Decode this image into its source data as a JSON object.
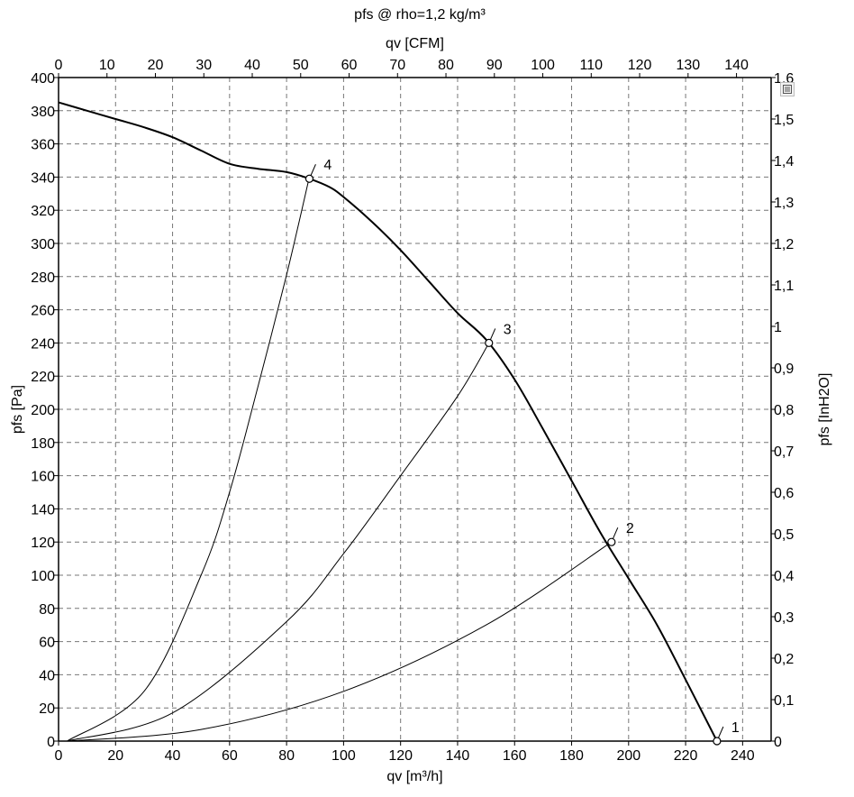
{
  "title": "pfs @ rho=1,2 kg/m³",
  "chart_data": {
    "type": "line",
    "xlabel": "qv [m³/h]",
    "ylabel": "pfs [Pa]",
    "x2label": "qv [CFM]",
    "y2label": "pfs [InH2O]",
    "xlim": [
      0,
      250
    ],
    "ylim": [
      0,
      400
    ],
    "x2lim": [
      0,
      147.15
    ],
    "y2lim": [
      0,
      1.6
    ],
    "xticks": [
      "0",
      "20",
      "40",
      "60",
      "80",
      "100",
      "120",
      "140",
      "160",
      "180",
      "200",
      "220",
      "240"
    ],
    "yticks": [
      "0",
      "20",
      "40",
      "60",
      "80",
      "100",
      "120",
      "140",
      "160",
      "180",
      "200",
      "220",
      "240",
      "260",
      "280",
      "300",
      "320",
      "340",
      "360",
      "380",
      "400"
    ],
    "x2ticks": [
      "0",
      "10",
      "20",
      "30",
      "40",
      "50",
      "60",
      "70",
      "80",
      "90",
      "100",
      "110",
      "120",
      "130",
      "140"
    ],
    "y2ticks": [
      "0",
      "0,1",
      "0,2",
      "0,3",
      "0,4",
      "0,5",
      "0,6",
      "0,7",
      "0,8",
      "0,9",
      "1",
      "1,1",
      "1,2",
      "1,3",
      "1,4",
      "1,5",
      "1,6"
    ],
    "grid": true,
    "fan_curve": {
      "x": [
        0,
        10,
        20,
        30,
        40,
        50,
        60,
        70,
        80,
        88,
        95,
        100,
        110,
        120,
        130,
        140,
        150,
        160,
        170,
        180,
        190,
        200,
        210,
        220,
        231
      ],
      "y": [
        385,
        380,
        375,
        370,
        364,
        356,
        348,
        345,
        343,
        339,
        334,
        328,
        313,
        296,
        277,
        258,
        242,
        218,
        188,
        157,
        126,
        98,
        70,
        37,
        0
      ]
    },
    "system_curves": [
      {
        "label": "4",
        "x": [
          3,
          30,
          50,
          60,
          70,
          80,
          88
        ],
        "y": [
          0,
          30,
          100,
          150,
          214,
          281,
          340
        ]
      },
      {
        "label": "3",
        "x": [
          3,
          40,
          80,
          100,
          120,
          140,
          151
        ],
        "y": [
          0,
          17,
          72,
          113,
          160,
          208,
          240
        ]
      },
      {
        "label": "2",
        "x": [
          3,
          50,
          100,
          150,
          194
        ],
        "y": [
          0,
          7,
          30,
          70,
          120
        ]
      }
    ],
    "operating_points": [
      {
        "label": "1",
        "x": 231,
        "y": 0
      },
      {
        "label": "2",
        "x": 194,
        "y": 120
      },
      {
        "label": "3",
        "x": 151,
        "y": 240
      },
      {
        "label": "4",
        "x": 88,
        "y": 339
      }
    ]
  }
}
